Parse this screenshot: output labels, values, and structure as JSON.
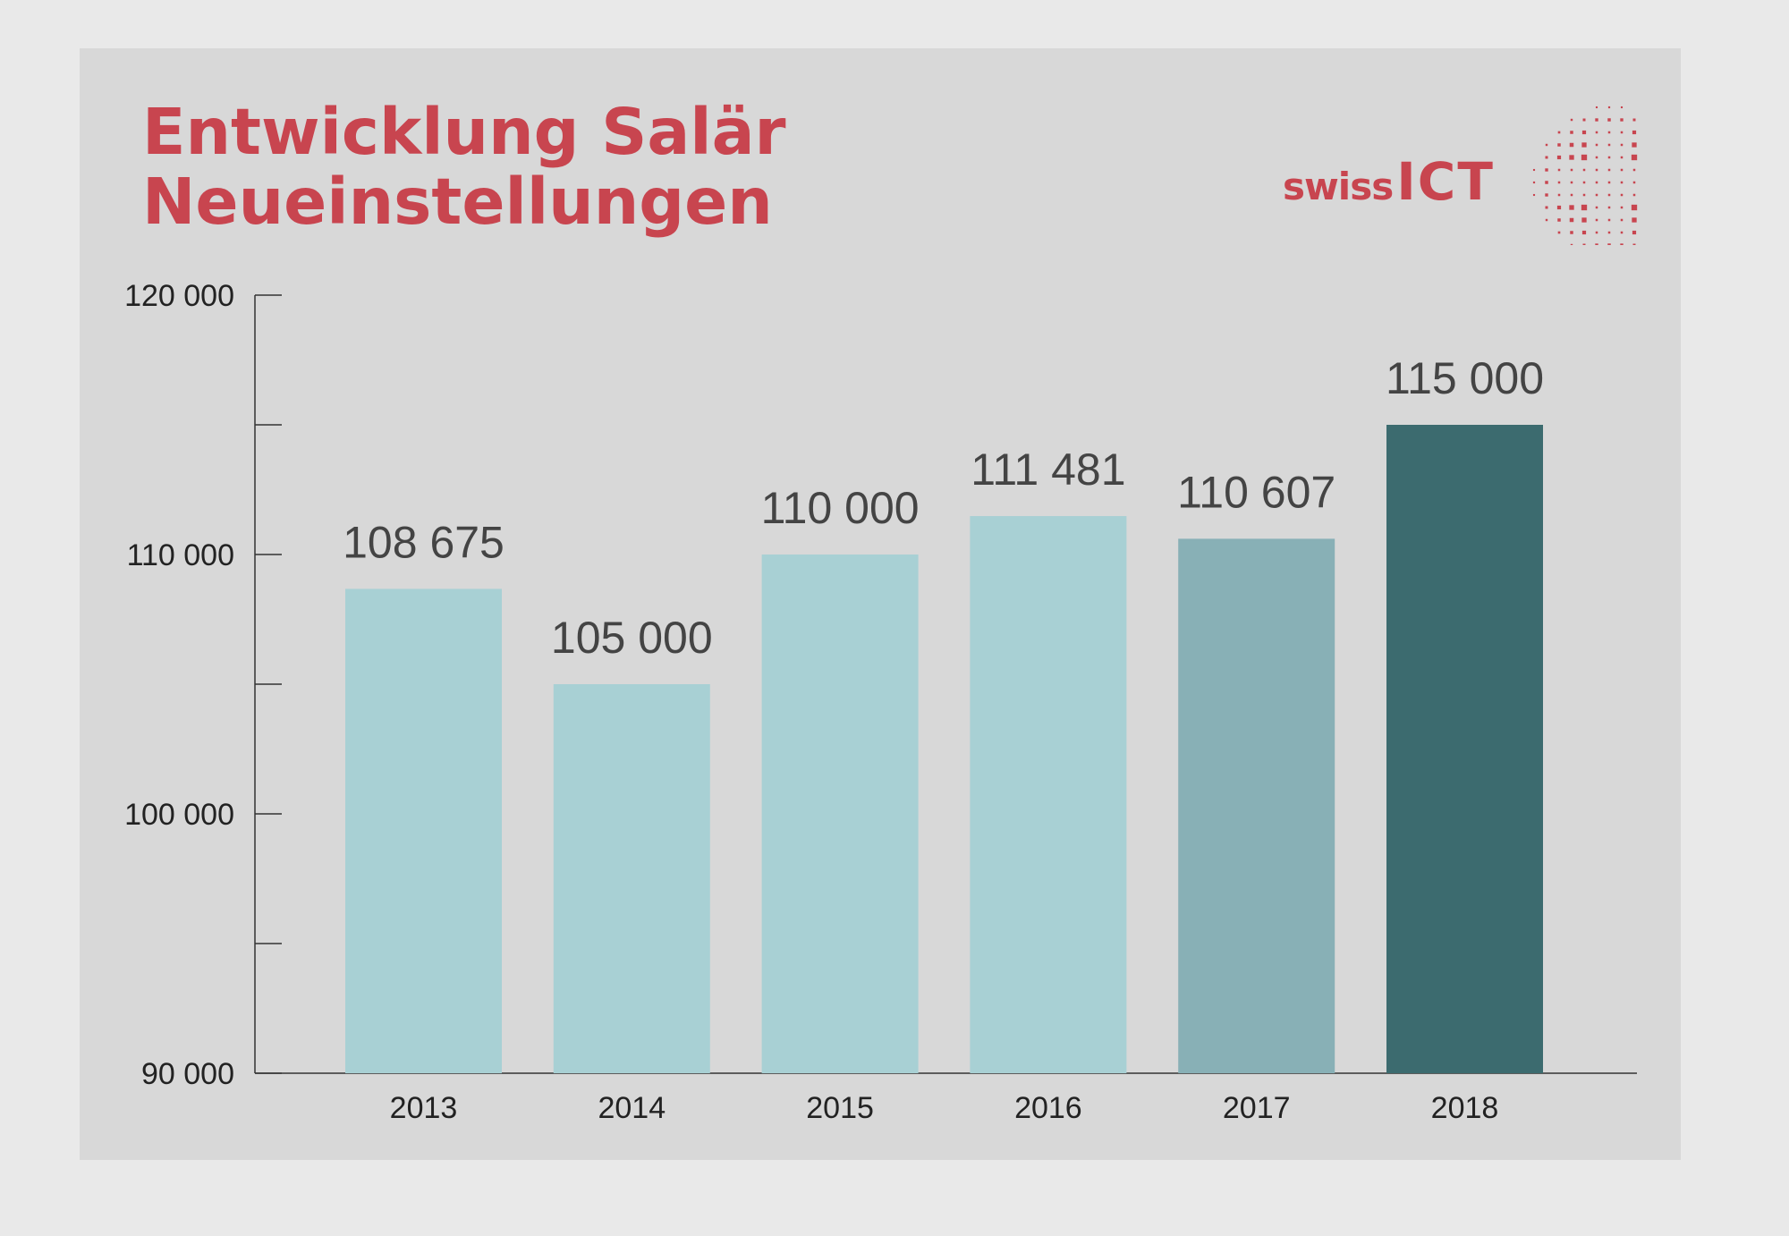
{
  "title_line1": "Entwicklung Salär",
  "title_line2": "Neueinstellungen",
  "logo": {
    "part1": "swiss",
    "part2": "ICT",
    "color": "#c8454f"
  },
  "chart_data": {
    "type": "bar",
    "title": "Entwicklung Salär Neueinstellungen",
    "categories": [
      "2013",
      "2014",
      "2015",
      "2016",
      "2017",
      "2018"
    ],
    "values": [
      108675,
      105000,
      110000,
      111481,
      110607,
      115000
    ],
    "value_labels": [
      "108 675",
      "105 000",
      "110 000",
      "111 481",
      "110 607",
      "115 000"
    ],
    "ylim": [
      90000,
      120000
    ],
    "y_ticks": [
      90000,
      95000,
      100000,
      105000,
      110000,
      115000,
      120000
    ],
    "y_tick_labels": [
      "90 000",
      "",
      "100 000",
      "",
      "110 000",
      "",
      "120 000"
    ],
    "colors": [
      "#a8d0d4",
      "#a8d0d4",
      "#a8d0d4",
      "#a8d0d4",
      "#88b0b6",
      "#3c6b6f"
    ],
    "grid": false,
    "xlabel": "",
    "ylabel": ""
  }
}
